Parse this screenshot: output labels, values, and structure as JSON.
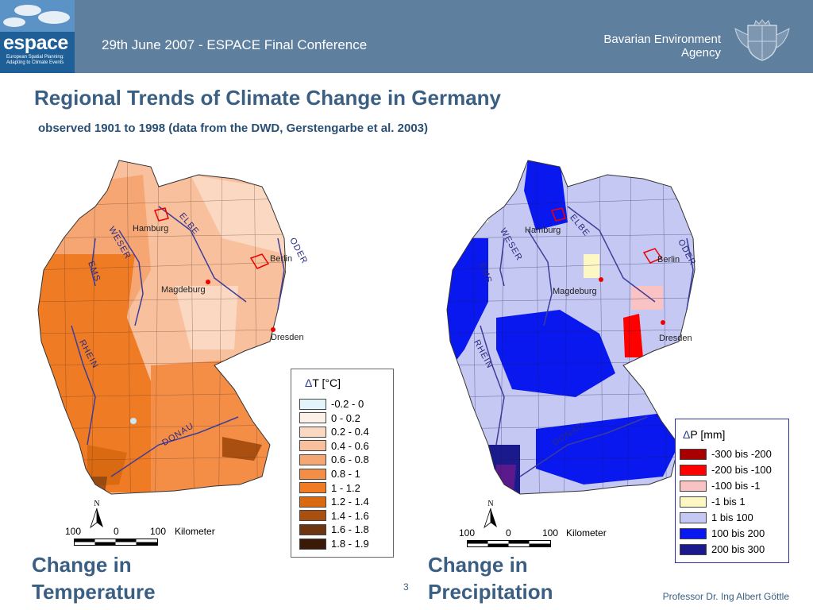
{
  "header": {
    "logo_text": "espace",
    "logo_tagline": "European Spatial Planning: Adapting to Climate Events",
    "conference": "29th June 2007 - ESPACE Final Conference",
    "agency_line1": "Bavarian Environment",
    "agency_line2": "Agency"
  },
  "title": "Regional Trends of Climate Change in Germany",
  "subtitle": "observed 1901 to 1998 (data from the DWD, Gerstengarbe et al. 2003)",
  "maps": {
    "cities": [
      "Hamburg",
      "Berlin",
      "Magdeburg",
      "Dresden"
    ],
    "rivers": [
      "ELBE",
      "WESER",
      "EMS",
      "ODER",
      "RHEIN",
      "DONAU"
    ],
    "scale": {
      "left": "100",
      "zero": "0",
      "right": "100",
      "unit": "Kilometer"
    },
    "north": "N"
  },
  "temperature": {
    "caption_line1": "Change in",
    "caption_line2": "Temperature",
    "legend_symbol": "Δ",
    "legend_title": "T [°C]",
    "legend": [
      {
        "label": "-0.2 - 0",
        "color": "#e4f4fb"
      },
      {
        "label": "0 - 0.2",
        "color": "#fdf0e8"
      },
      {
        "label": "0.2 - 0.4",
        "color": "#fbd8c2"
      },
      {
        "label": "0.4 - 0.6",
        "color": "#f8c09c"
      },
      {
        "label": "0.6 - 0.8",
        "color": "#f5a672"
      },
      {
        "label": "0.8 - 1",
        "color": "#f48d46"
      },
      {
        "label": "1 - 1.2",
        "color": "#ef7b24"
      },
      {
        "label": "1.2 - 1.4",
        "color": "#d96a12"
      },
      {
        "label": "1.4 - 1.6",
        "color": "#a95010"
      },
      {
        "label": "1.6 - 1.8",
        "color": "#6d3510"
      },
      {
        "label": "1.8 - 1.9",
        "color": "#3a1a06"
      }
    ]
  },
  "precipitation": {
    "caption_line1": "Change in",
    "caption_line2": "Precipitation",
    "legend_symbol": "Δ",
    "legend_title": "P [mm]",
    "legend": [
      {
        "label": "-300 bis -200",
        "color": "#a80000"
      },
      {
        "label": "-200 bis -100",
        "color": "#ff0000"
      },
      {
        "label": "-100 bis -1",
        "color": "#f9c3c3"
      },
      {
        "label": "-1 bis 1",
        "color": "#fdf7c3"
      },
      {
        "label": "1 bis 100",
        "color": "#c5c8f2"
      },
      {
        "label": "100 bis 200",
        "color": "#0a18f0"
      },
      {
        "label": "200 bis 300",
        "color": "#1a1a8c"
      }
    ]
  },
  "page_number": "3",
  "author": "Professor Dr. Ing Albert Göttle"
}
